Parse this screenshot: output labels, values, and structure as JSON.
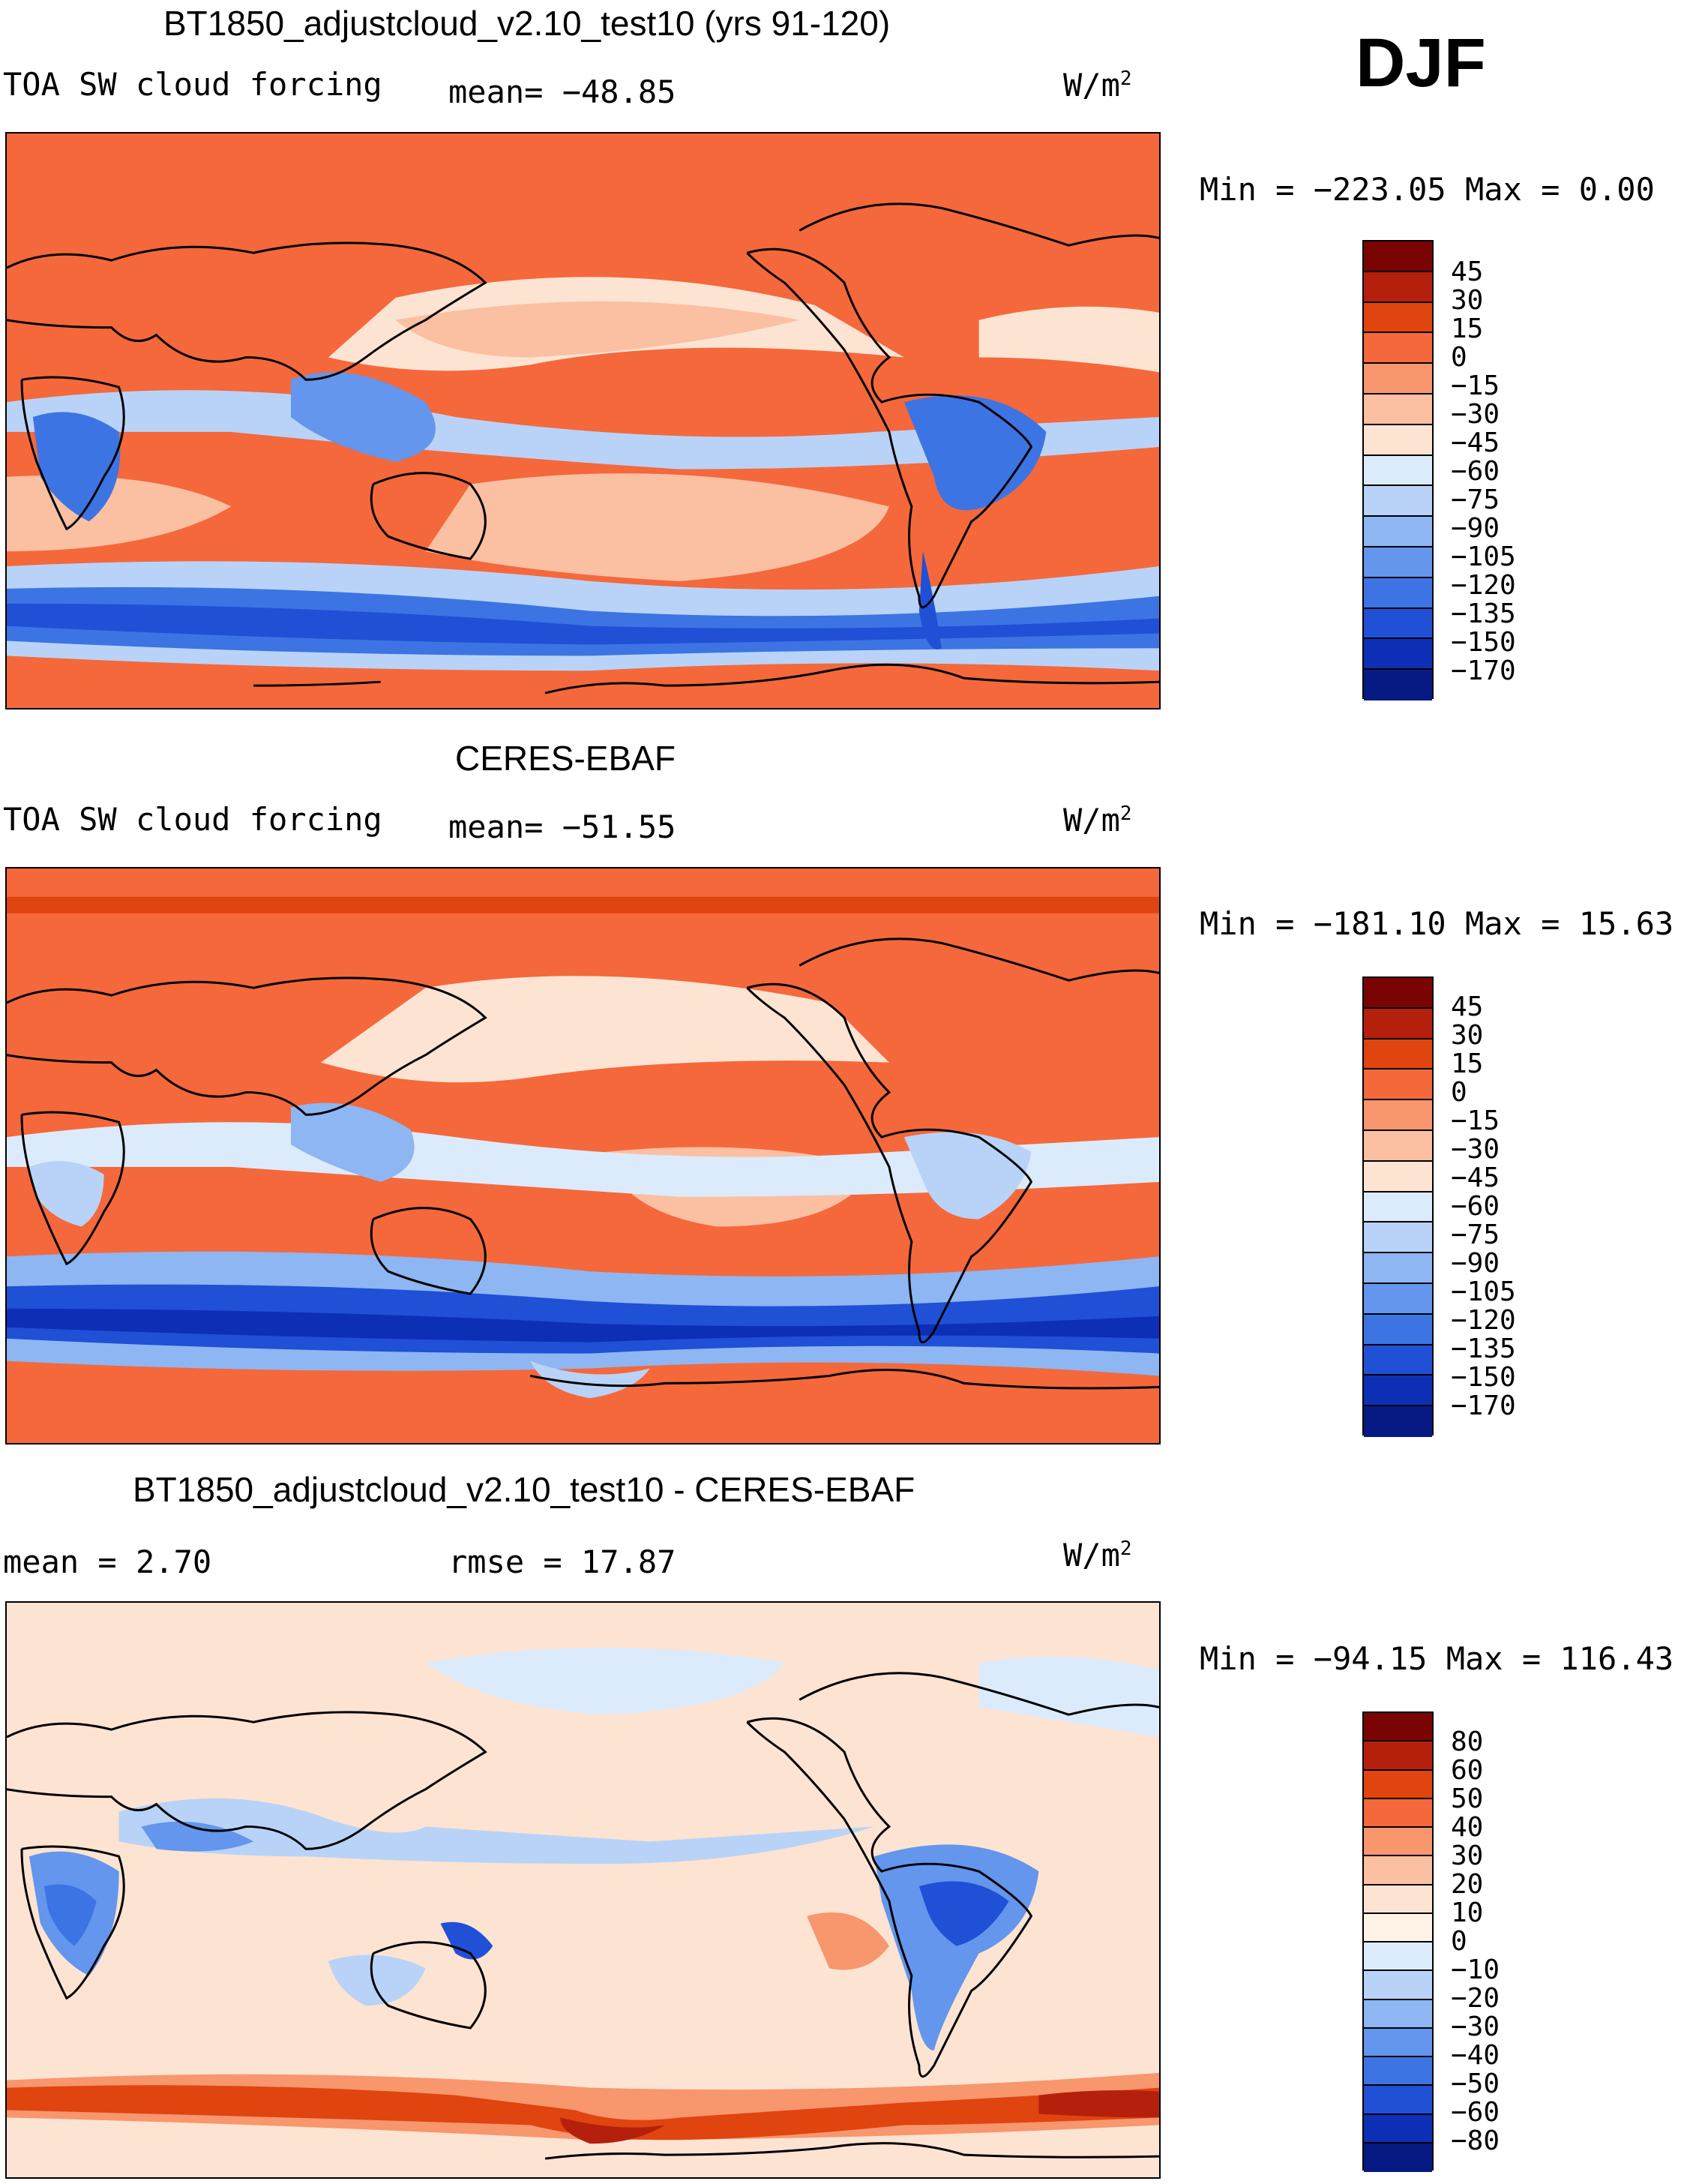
{
  "season": "DJF",
  "panels": [
    {
      "title": "BT1850_adjustcloud_v2.10_test10 (yrs 91-120)",
      "left_label": "TOA SW cloud forcing",
      "stat_label": "mean= −48.85",
      "units": "W/m",
      "units_sup": "2",
      "minmax": "Min = −223.05 Max =    0.00",
      "colorbar_labels": [
        "45",
        "30",
        "15",
        "0",
        "−15",
        "−30",
        "−45",
        "−60",
        "−75",
        "−90",
        "−105",
        "−120",
        "−135",
        "−150",
        "−170"
      ]
    },
    {
      "title": "CERES-EBAF",
      "left_label": "TOA SW cloud forcing",
      "stat_label": "mean= −51.55",
      "units": "W/m",
      "units_sup": "2",
      "minmax": "Min = −181.10 Max =  15.63",
      "colorbar_labels": [
        "45",
        "30",
        "15",
        "0",
        "−15",
        "−30",
        "−45",
        "−60",
        "−75",
        "−90",
        "−105",
        "−120",
        "−135",
        "−150",
        "−170"
      ]
    },
    {
      "title": "BT1850_adjustcloud_v2.10_test10 - CERES-EBAF",
      "left_label": "mean =    2.70",
      "stat_label": "rmse =   17.87",
      "units": "W/m",
      "units_sup": "2",
      "minmax": "Min = −94.15 Max = 116.43",
      "colorbar_labels": [
        "80",
        "60",
        "50",
        "40",
        "30",
        "20",
        "10",
        "0",
        "−10",
        "−20",
        "−30",
        "−40",
        "−50",
        "−60",
        "−80"
      ]
    }
  ],
  "colors": {
    "abs_scale": [
      "#7a0403",
      "#b5200d",
      "#e0440f",
      "#f4683c",
      "#f8966e",
      "#fbbfa2",
      "#fde3d2",
      "#dcebfb",
      "#b8d3f7",
      "#8db6f2",
      "#6396ec",
      "#3d74e3",
      "#1f50d6",
      "#0c2fb5",
      "#071a84"
    ],
    "diff_scale": [
      "#7a0403",
      "#b5200d",
      "#e0440f",
      "#f4683c",
      "#f8966e",
      "#fbbfa2",
      "#fde3d2",
      "#fff3e8",
      "#dcebfb",
      "#b8d3f7",
      "#8db6f2",
      "#6396ec",
      "#3d74e3",
      "#1f50d6",
      "#0c2fb5",
      "#071a84"
    ]
  }
}
